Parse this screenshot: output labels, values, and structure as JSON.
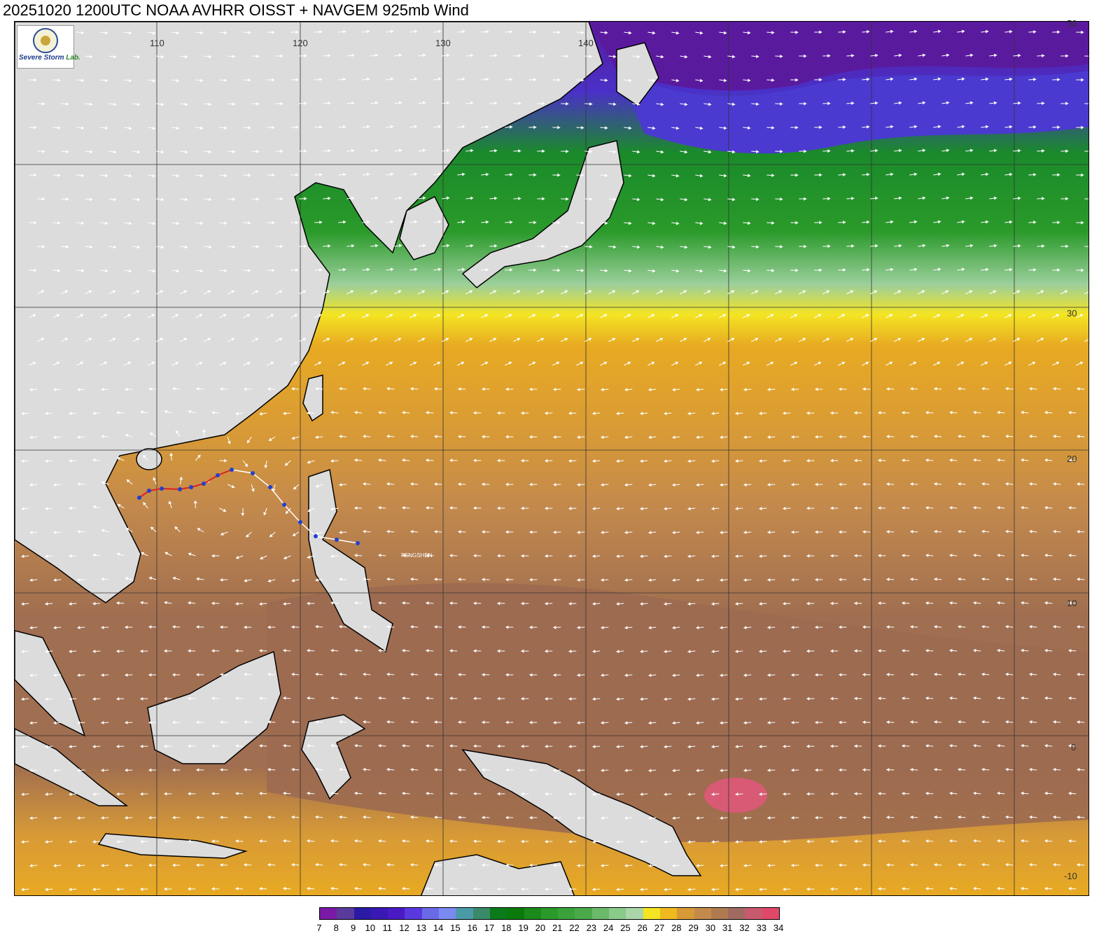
{
  "title": "20251020 1200UTC NOAA AVHRR OISST + NAVGEM 925mb Wind",
  "logo": {
    "text_severe": "Severe",
    "text_storm": "Storm",
    "text_lab": "Lab."
  },
  "map": {
    "longitude_labels": [
      "110",
      "120",
      "130",
      "140"
    ],
    "latitude_labels": [
      "50",
      "30",
      "20",
      "10",
      "0",
      "-10"
    ],
    "storm_name": "FENGSHEN",
    "colors": {
      "land": "#dcdcdc",
      "coast": "#000000",
      "track_observed": "#e02020",
      "track_forecast": "#ffffff",
      "track_marker": "#2040d0",
      "wind_arrow": "#ffffff"
    }
  },
  "colorbar": {
    "values": [
      "7",
      "8",
      "9",
      "10",
      "11",
      "12",
      "13",
      "14",
      "15",
      "16",
      "17",
      "18",
      "19",
      "20",
      "21",
      "22",
      "23",
      "24",
      "25",
      "26",
      "27",
      "28",
      "29",
      "30",
      "31",
      "32",
      "33",
      "34"
    ],
    "colors": [
      "#7a1aa6",
      "#5a3a9a",
      "#2a1aa6",
      "#3a18b4",
      "#4a1ac4",
      "#5a38e0",
      "#6a6ae8",
      "#7a8af0",
      "#4a9aa8",
      "#3a8a6a",
      "#0a7a1a",
      "#0a7a0a",
      "#1a8a1a",
      "#2a9a2a",
      "#3aa23a",
      "#4aaa4a",
      "#6aba6a",
      "#8aca8a",
      "#aad6aa",
      "#f4e422",
      "#f0b91e",
      "#d89a36",
      "#c48a4c",
      "#b07a50",
      "#a06a62",
      "#c85a70",
      "#e04868",
      "#d82848"
    ]
  }
}
